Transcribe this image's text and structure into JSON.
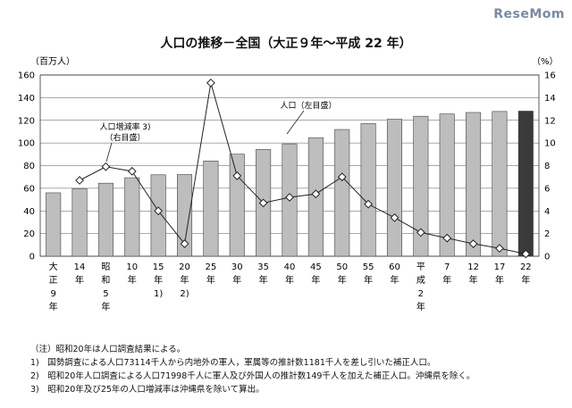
{
  "watermark": "ReseMom",
  "title": "人口の推移－全国（大正９年～平成 22 年）",
  "chart_data": {
    "type": "bar",
    "title": "人口の推移－全国（大正９年～平成 22 年）",
    "left_axis": {
      "unit": "（百万人）",
      "ylim": [
        0,
        160
      ],
      "ticks": [
        0,
        20,
        40,
        60,
        80,
        100,
        120,
        140,
        160
      ]
    },
    "right_axis": {
      "unit": "（%）",
      "ylim": [
        0,
        16
      ],
      "ticks": [
        0,
        2,
        4,
        6,
        8,
        10,
        12,
        14,
        16
      ]
    },
    "categories": [
      [
        "大",
        "正",
        "9",
        "年"
      ],
      [
        "14",
        "年"
      ],
      [
        "昭",
        "和",
        "5",
        "年"
      ],
      [
        "10",
        "年"
      ],
      [
        "15",
        "年",
        "1)"
      ],
      [
        "20",
        "年",
        "2)"
      ],
      [
        "25",
        "年"
      ],
      [
        "30",
        "年"
      ],
      [
        "35",
        "年"
      ],
      [
        "40",
        "年"
      ],
      [
        "45",
        "年"
      ],
      [
        "50",
        "年"
      ],
      [
        "55",
        "年"
      ],
      [
        "60",
        "年"
      ],
      [
        "平",
        "成",
        "2",
        "年"
      ],
      [
        "7",
        "年"
      ],
      [
        "12",
        "年"
      ],
      [
        "17",
        "年"
      ],
      [
        "22",
        "年"
      ]
    ],
    "series": [
      {
        "name": "人口（左目盛）",
        "axis": "left",
        "type": "bar",
        "values": [
          56.0,
          59.7,
          64.5,
          69.3,
          71.9,
          72.1,
          84.1,
          90.1,
          94.3,
          99.2,
          104.7,
          111.9,
          117.1,
          121.0,
          123.6,
          125.6,
          126.9,
          127.8,
          128.1
        ]
      },
      {
        "name": "人口増減率 3)（右目盛）",
        "axis": "right",
        "type": "line",
        "values": [
          null,
          6.7,
          7.9,
          7.5,
          4.0,
          1.1,
          15.3,
          7.1,
          4.7,
          5.2,
          5.5,
          7.0,
          4.6,
          3.4,
          2.1,
          1.6,
          1.1,
          0.7,
          0.2
        ]
      }
    ],
    "highlight_last_bar_color": "#3a3a3a",
    "bar_color": "#bdbdbd",
    "grid": true
  },
  "annotations": {
    "rate_label": [
      "人口増減率 3)",
      "（右目盛）"
    ],
    "pop_label": "人口（左目盛）"
  },
  "notes": [
    "（注）昭和20年は人口調査結果による。",
    "1)　国勢調査による人口73114千人から内地外の軍人，軍属等の推計数1181千人を差し引いた補正人口。",
    "2)　昭和20年人口調査による人口71998千人に軍人及び外国人の推計数149千人を加えた補正人口。沖縄県を除く。",
    "3)　昭和20年及び25年の人口増減率は沖縄県を除いて算出。"
  ]
}
